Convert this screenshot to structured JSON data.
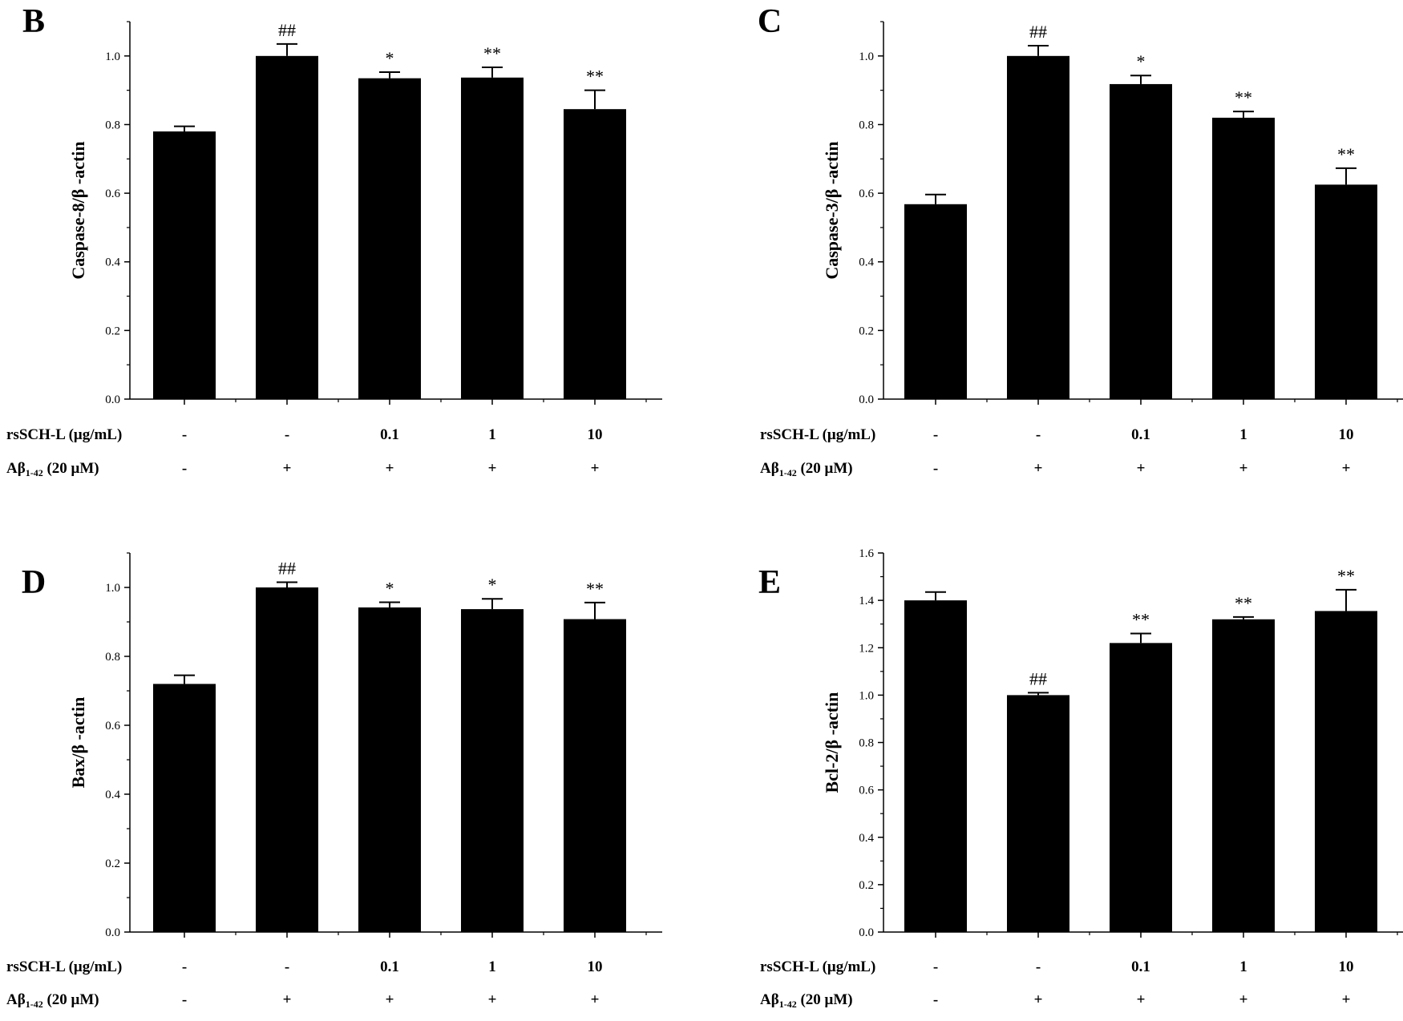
{
  "chart_data": [
    {
      "type": "bar",
      "panel": "B",
      "ylabel": "Caspase-8/β -actin",
      "ylim": [
        0,
        1.1
      ],
      "yticks": [
        "0.0",
        "0.2",
        "0.4",
        "0.6",
        "0.8",
        "1.0"
      ],
      "values": [
        0.78,
        1.0,
        0.935,
        0.937,
        0.845
      ],
      "errors": [
        0.015,
        0.035,
        0.018,
        0.03,
        0.055
      ],
      "significance": [
        "",
        "##",
        "*",
        "**",
        "**"
      ],
      "conditions": {
        "rsSCH-L (μg/mL)": [
          "-",
          "-",
          "0.1",
          "1",
          "10"
        ],
        "Aβ1-42 (20 μM)": [
          "-",
          "+",
          "+",
          "+",
          "+"
        ]
      }
    },
    {
      "type": "bar",
      "panel": "C",
      "ylabel": "Caspase-3/β -actin",
      "ylim": [
        0,
        1.1
      ],
      "yticks": [
        "0.0",
        "0.2",
        "0.4",
        "0.6",
        "0.8",
        "1.0"
      ],
      "values": [
        0.568,
        1.0,
        0.918,
        0.82,
        0.625
      ],
      "errors": [
        0.028,
        0.03,
        0.025,
        0.018,
        0.048
      ],
      "significance": [
        "",
        "##",
        "*",
        "**",
        "**"
      ],
      "conditions": {
        "rsSCH-L (μg/mL)": [
          "-",
          "-",
          "0.1",
          "1",
          "10"
        ],
        "Aβ1-42 (20 μM)": [
          "-",
          "+",
          "+",
          "+",
          "+"
        ]
      }
    },
    {
      "type": "bar",
      "panel": "D",
      "ylabel": "Bax/β -actin",
      "ylim": [
        0,
        1.1
      ],
      "yticks": [
        "0.0",
        "0.2",
        "0.4",
        "0.6",
        "0.8",
        "1.0"
      ],
      "values": [
        0.72,
        1.0,
        0.942,
        0.937,
        0.908
      ],
      "errors": [
        0.025,
        0.015,
        0.015,
        0.03,
        0.048
      ],
      "significance": [
        "",
        "##",
        "*",
        "*",
        "**"
      ],
      "conditions": {
        "rsSCH-L (μg/mL)": [
          "-",
          "-",
          "0.1",
          "1",
          "10"
        ],
        "Aβ1-42 (20 μM)": [
          "-",
          "+",
          "+",
          "+",
          "+"
        ]
      }
    },
    {
      "type": "bar",
      "panel": "E",
      "ylabel": "Bcl-2/β -actin",
      "ylim": [
        0,
        1.6
      ],
      "yticks": [
        "0.0",
        "0.2",
        "0.4",
        "0.6",
        "0.8",
        "1.0",
        "1.2",
        "1.4",
        "1.6"
      ],
      "values": [
        1.4,
        1.0,
        1.22,
        1.32,
        1.355
      ],
      "errors": [
        0.035,
        0.01,
        0.04,
        0.01,
        0.09
      ],
      "significance": [
        "",
        "##",
        "**",
        "**",
        "**"
      ],
      "conditions": {
        "rsSCH-L (μg/mL)": [
          "-",
          "-",
          "0.1",
          "1",
          "10"
        ],
        "Aβ1-42 (20 μM)": [
          "-",
          "+",
          "+",
          "+",
          "+"
        ]
      }
    }
  ],
  "condition_labels": {
    "rs": "rsSCH-L (μg/mL)",
    "ab_main": "Aβ",
    "ab_sub": "1-42",
    "ab_rest": " (20 μM)"
  },
  "colors": {
    "bar": "#000000",
    "axis": "#000000"
  }
}
